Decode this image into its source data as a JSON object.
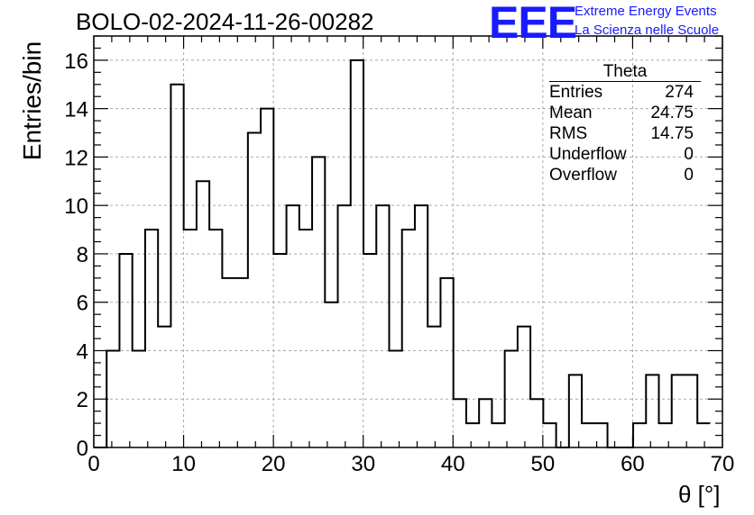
{
  "header": {
    "run_title": "BOLO-02-2024-11-26-00282",
    "logo_text": "EEE",
    "logo_line1": "Extreme Energy Events",
    "logo_line2": "La Scienza nelle Scuole",
    "accent_color": "#1a1aff"
  },
  "stats_box": {
    "title": "Theta",
    "rows": [
      {
        "label": "Entries",
        "value": "274"
      },
      {
        "label": "Mean",
        "value": "24.75"
      },
      {
        "label": "RMS",
        "value": "14.75"
      },
      {
        "label": "Underflow",
        "value": "0"
      },
      {
        "label": "Overflow",
        "value": "0"
      }
    ]
  },
  "chart_data": {
    "type": "histogram",
    "title": "BOLO-02-2024-11-26-00282",
    "xlabel": "θ [°]",
    "ylabel": "Entries/bin",
    "xlim": [
      0,
      70
    ],
    "ylim": [
      0,
      17
    ],
    "bin_edges_start": 0,
    "bin_width": 1.43,
    "values": [
      0,
      4,
      8,
      4,
      9,
      5,
      15,
      9,
      11,
      9,
      7,
      7,
      13,
      14,
      8,
      10,
      9,
      12,
      6,
      10,
      16,
      8,
      10,
      4,
      9,
      10,
      5,
      7,
      2,
      1,
      2,
      1,
      4,
      5,
      2,
      1,
      0,
      3,
      1,
      1,
      0,
      0,
      1,
      3,
      1,
      3,
      3,
      1
    ],
    "x_ticks": [
      "0",
      "10",
      "20",
      "30",
      "40",
      "50",
      "60",
      "70"
    ],
    "y_ticks": [
      "0",
      "2",
      "4",
      "6",
      "8",
      "10",
      "12",
      "14",
      "16"
    ],
    "grid": true
  }
}
